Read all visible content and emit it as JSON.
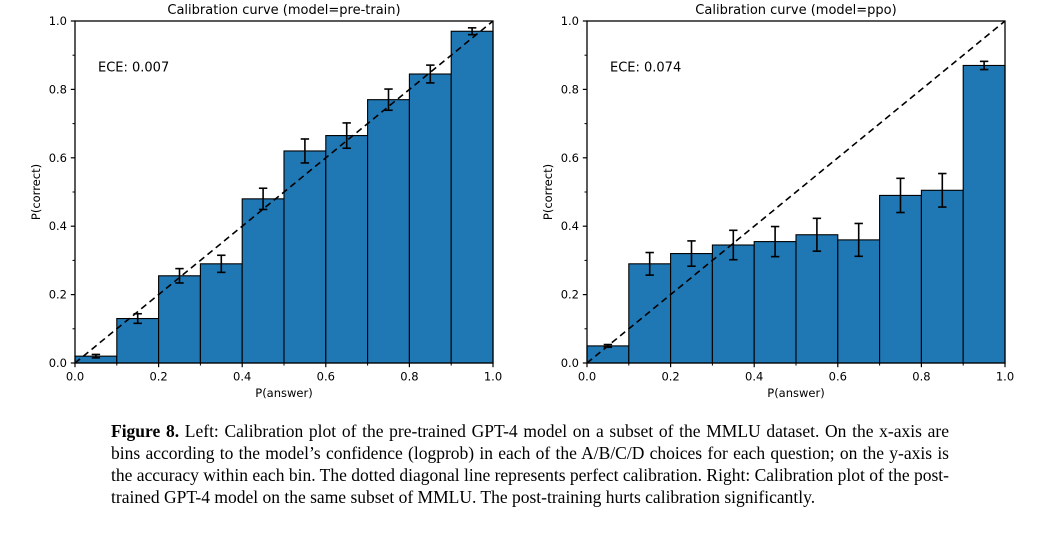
{
  "page": {
    "background": "#ffffff"
  },
  "caption": {
    "label": "Figure 8.",
    "text": "Left: Calibration plot of the pre-trained GPT-4 model on a subset of the MMLU dataset. On the x-axis are bins according to the model’s confidence (logprob) in each of the A/B/C/D choices for each question; on the y-axis is the accuracy within each bin. The dotted diagonal line represents perfect calibration. Right: Calibration plot of the post-trained GPT-4 model on the same subset of MMLU. The post-training hurts calibration significantly."
  },
  "chart_data": [
    {
      "type": "bar",
      "title": "Calibration curve (model=pre-train)",
      "annotation": "ECE: 0.007",
      "xlabel": "P(answer)",
      "ylabel": "P(correct)",
      "xlim": [
        0.0,
        1.0
      ],
      "ylim": [
        0.0,
        1.0
      ],
      "grid": false,
      "legend": "none",
      "x_major_ticks": [
        {
          "v": 0.0,
          "label": "0.0"
        },
        {
          "v": 0.2,
          "label": "0.2"
        },
        {
          "v": 0.4,
          "label": "0.4"
        },
        {
          "v": 0.6,
          "label": "0.6"
        },
        {
          "v": 0.8,
          "label": "0.8"
        },
        {
          "v": 1.0,
          "label": "1.0"
        }
      ],
      "y_major_ticks": [
        {
          "v": 0.0,
          "label": "0.0"
        },
        {
          "v": 0.2,
          "label": "0.2"
        },
        {
          "v": 0.4,
          "label": "0.4"
        },
        {
          "v": 0.6,
          "label": "0.6"
        },
        {
          "v": 0.8,
          "label": "0.8"
        },
        {
          "v": 1.0,
          "label": "1.0"
        }
      ],
      "minor_ticks": [
        0.1,
        0.3,
        0.5,
        0.7,
        0.9
      ],
      "bin_width": 0.1,
      "bin_left_edges": [
        0.0,
        0.1,
        0.2,
        0.3,
        0.4,
        0.5,
        0.6,
        0.7,
        0.8,
        0.9
      ],
      "values": [
        0.02,
        0.13,
        0.255,
        0.29,
        0.48,
        0.62,
        0.665,
        0.77,
        0.845,
        0.97
      ],
      "errors": [
        0.005,
        0.014,
        0.021,
        0.025,
        0.031,
        0.035,
        0.037,
        0.031,
        0.026,
        0.01
      ],
      "diagonal_line": "perfect calibration (0,0)-(1,1), dashed",
      "bar_color": "#1f77b4",
      "edge_color": "#000000",
      "errorbar_color": "#000000"
    },
    {
      "type": "bar",
      "title": "Calibration curve (model=ppo)",
      "annotation": "ECE: 0.074",
      "xlabel": "P(answer)",
      "ylabel": "P(correct)",
      "xlim": [
        0.0,
        1.0
      ],
      "ylim": [
        0.0,
        1.0
      ],
      "grid": false,
      "legend": "none",
      "x_major_ticks": [
        {
          "v": 0.0,
          "label": "0.0"
        },
        {
          "v": 0.2,
          "label": "0.2"
        },
        {
          "v": 0.4,
          "label": "0.4"
        },
        {
          "v": 0.6,
          "label": "0.6"
        },
        {
          "v": 0.8,
          "label": "0.8"
        },
        {
          "v": 1.0,
          "label": "1.0"
        }
      ],
      "y_major_ticks": [
        {
          "v": 0.0,
          "label": "0.0"
        },
        {
          "v": 0.2,
          "label": "0.2"
        },
        {
          "v": 0.4,
          "label": "0.4"
        },
        {
          "v": 0.6,
          "label": "0.6"
        },
        {
          "v": 0.8,
          "label": "0.8"
        },
        {
          "v": 1.0,
          "label": "1.0"
        }
      ],
      "minor_ticks": [
        0.1,
        0.3,
        0.5,
        0.7,
        0.9
      ],
      "bin_width": 0.1,
      "bin_left_edges": [
        0.0,
        0.1,
        0.2,
        0.3,
        0.4,
        0.5,
        0.6,
        0.7,
        0.8,
        0.9
      ],
      "values": [
        0.05,
        0.29,
        0.32,
        0.345,
        0.355,
        0.375,
        0.36,
        0.49,
        0.505,
        0.87
      ],
      "errors": [
        0.004,
        0.033,
        0.037,
        0.043,
        0.044,
        0.048,
        0.048,
        0.05,
        0.049,
        0.012
      ],
      "diagonal_line": "perfect calibration (0,0)-(1,1), dashed",
      "bar_color": "#1f77b4",
      "edge_color": "#000000",
      "errorbar_color": "#000000"
    }
  ]
}
